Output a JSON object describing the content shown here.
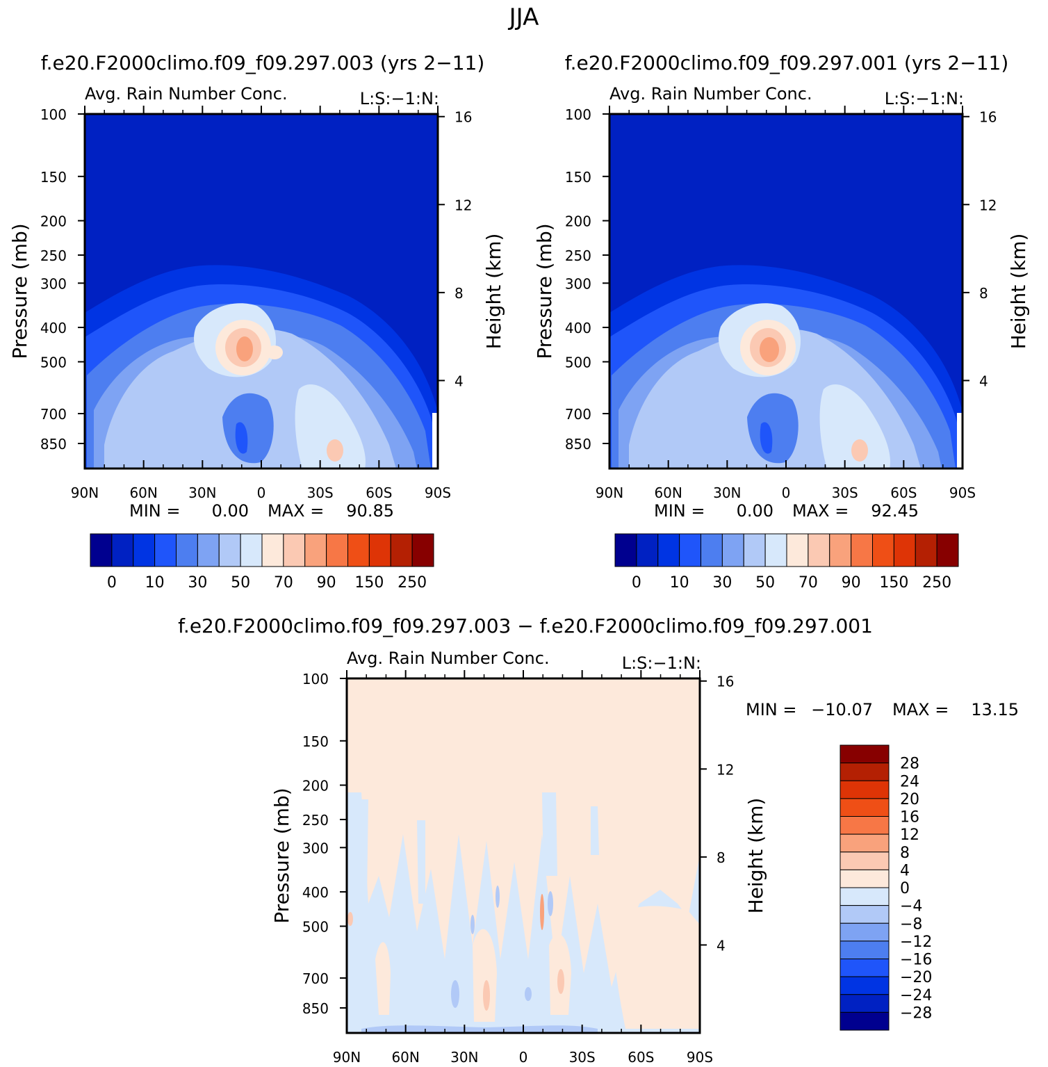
{
  "figure": {
    "season": "JJA"
  },
  "chart_data": [
    {
      "type": "heatmap",
      "case_title": "f.e20.F2000climo.f09_f09.297.003 (yrs 2−11)",
      "title": "Avg. Rain Number Conc.",
      "tag": "L:S:−1:N:",
      "ylabel": "Pressure (mb)",
      "ylabel2": "Height (km)",
      "xticks": [
        "90N",
        "60N",
        "30N",
        "0",
        "30S",
        "60S",
        "90S"
      ],
      "xlim": [
        90,
        -90
      ],
      "yticks": [
        "100",
        "150",
        "200",
        "250",
        "300",
        "400",
        "500",
        "700",
        "850"
      ],
      "yticks_right": [
        "16",
        "12",
        "8",
        "4"
      ],
      "ylim": [
        100,
        1000
      ],
      "min_label": "MIN =",
      "min_value": "0.00",
      "max_label": "MAX =",
      "max_value": "90.85",
      "levels": [
        "0",
        "10",
        "30",
        "50",
        "70",
        "90",
        "150",
        "250"
      ],
      "colors": [
        "#00008f",
        "#0021c2",
        "#0034e3",
        "#1f55fa",
        "#4d7ef0",
        "#7ea3f3",
        "#b1c9f7",
        "#d7e8fb",
        "#fde9db",
        "#fbc9b3",
        "#f9a27c",
        "#f77746",
        "#ef4f16",
        "#de3406",
        "#b42003",
        "#870000"
      ]
    },
    {
      "type": "heatmap",
      "case_title": "f.e20.F2000climo.f09_f09.297.001 (yrs 2−11)",
      "title": "Avg. Rain Number Conc.",
      "tag": "L:S:−1:N:",
      "ylabel": "Pressure (mb)",
      "ylabel2": "Height (km)",
      "xticks": [
        "90N",
        "60N",
        "30N",
        "0",
        "30S",
        "60S",
        "90S"
      ],
      "xlim": [
        90,
        -90
      ],
      "yticks": [
        "100",
        "150",
        "200",
        "250",
        "300",
        "400",
        "500",
        "700",
        "850"
      ],
      "yticks_right": [
        "16",
        "12",
        "8",
        "4"
      ],
      "ylim": [
        100,
        1000
      ],
      "min_label": "MIN =",
      "min_value": "0.00",
      "max_label": "MAX =",
      "max_value": "92.45",
      "levels": [
        "0",
        "10",
        "30",
        "50",
        "70",
        "90",
        "150",
        "250"
      ],
      "colors": [
        "#00008f",
        "#0021c2",
        "#0034e3",
        "#1f55fa",
        "#4d7ef0",
        "#7ea3f3",
        "#b1c9f7",
        "#d7e8fb",
        "#fde9db",
        "#fbc9b3",
        "#f9a27c",
        "#f77746",
        "#ef4f16",
        "#de3406",
        "#b42003",
        "#870000"
      ]
    },
    {
      "type": "heatmap",
      "case_title": "f.e20.F2000climo.f09_f09.297.003 − f.e20.F2000climo.f09_f09.297.001",
      "title": "Avg. Rain Number Conc.",
      "tag": "L:S:−1:N:",
      "ylabel": "Pressure (mb)",
      "ylabel2": "Height (km)",
      "xticks": [
        "90N",
        "60N",
        "30N",
        "0",
        "30S",
        "60S",
        "90S"
      ],
      "xlim": [
        90,
        -90
      ],
      "yticks": [
        "100",
        "150",
        "200",
        "250",
        "300",
        "400",
        "500",
        "700",
        "850"
      ],
      "yticks_right": [
        "16",
        "12",
        "8",
        "4"
      ],
      "ylim": [
        100,
        1000
      ],
      "min_label": "MIN =",
      "min_value": "−10.07",
      "max_label": "MAX =",
      "max_value": "13.15",
      "levels": [
        "28",
        "24",
        "20",
        "16",
        "12",
        "8",
        "4",
        "0",
        "−4",
        "−8",
        "−12",
        "−16",
        "−20",
        "−24",
        "−28"
      ],
      "colors": [
        "#870000",
        "#b42003",
        "#de3406",
        "#ef4f16",
        "#f77746",
        "#f9a27c",
        "#fbc9b3",
        "#fde9db",
        "#d7e8fb",
        "#b1c9f7",
        "#7ea3f3",
        "#4d7ef0",
        "#1f55fa",
        "#0034e3",
        "#0021c2",
        "#00008f"
      ]
    }
  ]
}
